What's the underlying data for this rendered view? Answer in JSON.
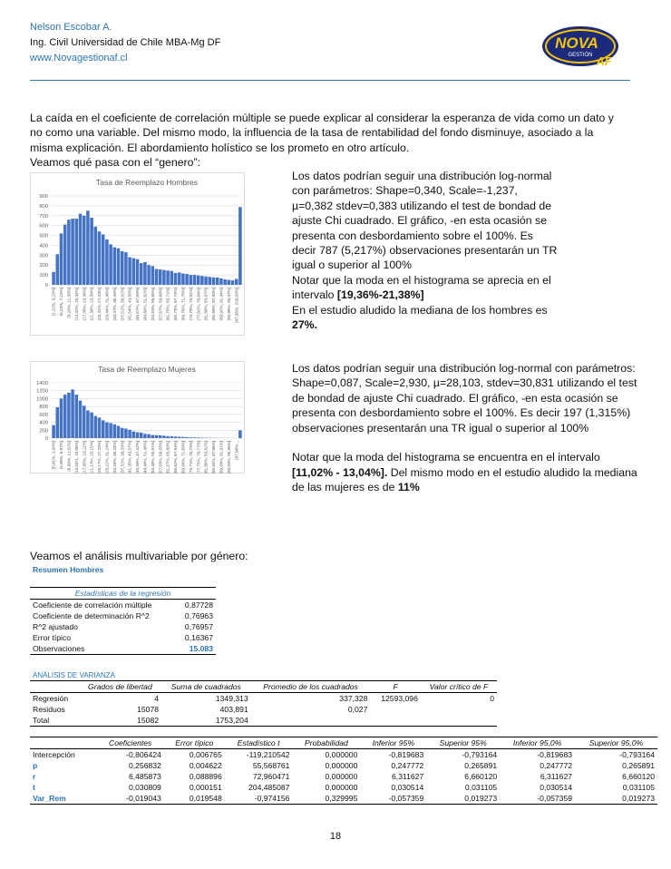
{
  "header": {
    "name": "Nelson Escobar A.",
    "title": "Ing. Civil Universidad de Chile MBA-Mg DF",
    "url": "www.Novagestionaf.cl",
    "logo": [
      "NOVA",
      "GESTIÓN",
      "AF"
    ]
  },
  "intro": "La caída en el coeficiente de correlación múltiple se puede explicar al considerar la esperanza de vida como un dato y no como una variable. Del mismo modo, la influencia de la tasa de rentabilidad del fondo disminuye, asociado a la misma explicación. El abordamiento holístico se los prometo en otro artículo.",
  "gender_heading": "Veamos qué pasa con el “genero”:",
  "chart_data": [
    {
      "type": "bar",
      "title": "Tasa de Reemplazo Hombres",
      "color": "#4472c4",
      "grid": true,
      "categories": [
        "[1,22%, 3,23%]",
        null,
        "(5,23%, 7,24%]",
        null,
        "(9,28%, 11,30%]",
        null,
        "(13,32%, 15,34%]",
        null,
        "(17,35%, 19,36%]",
        null,
        "(21,38%, 23,39%]",
        null,
        "(25,41%, 27,43%]",
        null,
        "(29,44%, 31,46%]",
        null,
        "(33,47%, 35,49%]",
        null,
        "(37,51%, 39,52%]",
        null,
        "(41,54%, 43,55%]",
        null,
        "(45,57%, 47,59%]",
        null,
        "(49,60%, 51,62%]",
        null,
        "(53,63%, 55,65%]",
        null,
        "(57,67%, 59,68%]",
        null,
        "(61,70%, 63,71%]",
        null,
        "(65,73%, 67,74%]",
        null,
        "(69,76%, 71,78%]",
        null,
        "(73,79%, 75,81%]",
        null,
        "(77,82%, 79,84%]",
        null,
        "(81,86%, 83,87%]",
        null,
        "(85,89%, 87,90%]",
        null,
        "(89,92%, 91,94%]",
        null,
        "(93,95%, 95,97%]",
        null,
        "(97,38%, 100,00%]",
        null
      ],
      "values": [
        130,
        310,
        520,
        610,
        660,
        670,
        670,
        720,
        700,
        750,
        680,
        590,
        540,
        510,
        460,
        410,
        380,
        370,
        340,
        330,
        280,
        270,
        260,
        220,
        230,
        200,
        190,
        160,
        155,
        150,
        145,
        140,
        120,
        125,
        115,
        110,
        100,
        100,
        95,
        90,
        85,
        80,
        75,
        75,
        65,
        55,
        50,
        45,
        60,
        787
      ],
      "ylim": [
        0,
        900
      ],
      "yticks": [
        0,
        100,
        200,
        300,
        400,
        500,
        600,
        700,
        800,
        900
      ]
    },
    {
      "type": "bar",
      "title": "Tasa de Reemplazo Mujeres",
      "color": "#4472c4",
      "grid": true,
      "categories": [
        "[0,91%, 2,93%]",
        null,
        "(4,95%, 6,97%]",
        null,
        "(8,99%, 11,02%]",
        null,
        "(13,04%, 15,06%]",
        null,
        "(17,08%, 19,11%]",
        null,
        "(21,13%, 23,15%]",
        null,
        "(25,17%, 27,20%]",
        null,
        "(29,22%, 31,24%]",
        null,
        "(33,26%, 35,28%]",
        null,
        "(37,31%, 39,33%]",
        null,
        "(41,35%, 43,37%]",
        null,
        "(45,39%, 47,42%]",
        null,
        "(49,44%, 51,46%]",
        null,
        "(53,48%, 55,51%]",
        null,
        "(57,53%, 59,55%]",
        null,
        "(61,57%, 63,60%]",
        null,
        "(65,62%, 67,64%]",
        null,
        "(69,66%, 71,69%]",
        null,
        "(73,71%, 75,73%]",
        null,
        "(77,75%, 79,77%]",
        null,
        "(81,80%, 83,82%]",
        null,
        "(85,84%, 87,86%]",
        null,
        "(89,89%, 91,91%]",
        null,
        "(93,93%, 95,95%]",
        null,
        "(97,98%...",
        null
      ],
      "values": [
        330,
        780,
        1000,
        1100,
        1150,
        1230,
        1100,
        950,
        820,
        700,
        650,
        560,
        520,
        450,
        400,
        380,
        350,
        310,
        260,
        240,
        210,
        170,
        150,
        140,
        110,
        100,
        80,
        75,
        70,
        60,
        50,
        45,
        40,
        35,
        30,
        25,
        20,
        18,
        15,
        12,
        10,
        8,
        6,
        5,
        4,
        3,
        2,
        2,
        1,
        197
      ],
      "ylim": [
        0,
        1400
      ],
      "yticks": [
        0,
        200,
        400,
        600,
        800,
        1000,
        1200,
        1400
      ]
    }
  ],
  "men_note": {
    "p1": "Los datos podrían seguir una distribución log-normal con parámetros: Shape=0,340, Scale=-1,237, µ=0,382 stdev=0,383 utilizando el test de bondad de ajuste Chi cuadrado. El gráfico, -en esta ocasión se presenta con desbordamiento sobre el 100%. Es decir 787 (5,217%) observaciones presentarán un TR igual o superior al 100%",
    "p2": "Notar que la moda en el histograma se aprecia en el intervalo ",
    "p2_bold": "[19,36%-21,38%]",
    "p3": "En el estudio aludido la mediana de los hombres es ",
    "p3_bold": "27%."
  },
  "women_note": {
    "p1": "Los datos podrían seguir una distribución log-normal con parámetros: Shape=0,087, Scale=2,930, µ=28,103, stdev=30,831 utilizando el test de bondad de ajuste Chi cuadrado. El gráfico, -en esta ocasión se presenta con desbordamiento sobre el 100%. Es decir 197 (1,315%) observaciones presentarán una TR igual o superior al 100%",
    "p2": "Notar que la moda del histograma se encuentra en el intervalo ",
    "p2_bold": "[11,02% - 13,04%].",
    "p2b": " Del mismo modo en el estudio aludido la mediana de las mujeres es de ",
    "p2b_bold": "11%"
  },
  "multi_heading": "Veamos el análisis multivariable por género:",
  "summary_title": "Resumen Hombres",
  "stats": {
    "title": "Estadísticas de la regresión",
    "rows": [
      [
        "Coeficiente de correlación múltiple",
        "0,87728"
      ],
      [
        "Coeficiente de determinación R^2",
        "0,76963"
      ],
      [
        "R^2  ajustado",
        "0,76957"
      ],
      [
        "Error típico",
        "0,16367"
      ],
      [
        "Observaciones",
        "15.083"
      ]
    ]
  },
  "anova": {
    "title": "ANÁLISIS DE VARIANZA",
    "header": [
      "Grados de libertad",
      "Suma de cuadrados",
      "Promedio de los cuadrados",
      "F",
      "Valor crítico de F"
    ],
    "rows": [
      [
        "Regresión",
        "4",
        "1349,313",
        "337,328",
        "12593,096",
        "0"
      ],
      [
        "Residuos",
        "15078",
        "403,891",
        "0,027"
      ],
      [
        "Total",
        "15082",
        "1753,204"
      ]
    ]
  },
  "coef": {
    "header": [
      "Coeficientes",
      "Error típico",
      "Estadístico t",
      "Probabilidad",
      "Inferior 95%",
      "Superior 95%",
      "Inferior 95,0%",
      "Superior 95,0%"
    ],
    "rows": [
      [
        "Intercepción",
        "-0,806424",
        "0,006765",
        "-119,210542",
        "0,000000",
        "-0,819683",
        "-0,793164",
        "-0,819683",
        "-0,793164"
      ],
      [
        "p",
        "0,256832",
        "0,004622",
        "55,568761",
        "0,000000",
        "0,247772",
        "0,265891",
        "0,247772",
        "0,265891"
      ],
      [
        "r",
        "6,485873",
        "0,088896",
        "72,960471",
        "0,000000",
        "6,311627",
        "6,660120",
        "6,311627",
        "6,660120"
      ],
      [
        "t",
        "0,030809",
        "0,000151",
        "204,485087",
        "0,000000",
        "0,030514",
        "0,031105",
        "0,030514",
        "0,031105"
      ],
      [
        "Var_Rem",
        "-0,019043",
        "0,019548",
        "-0,974156",
        "0,329995",
        "-0,057359",
        "0,019273",
        "-0,057359",
        "0,019273"
      ]
    ]
  },
  "page_number": "18"
}
